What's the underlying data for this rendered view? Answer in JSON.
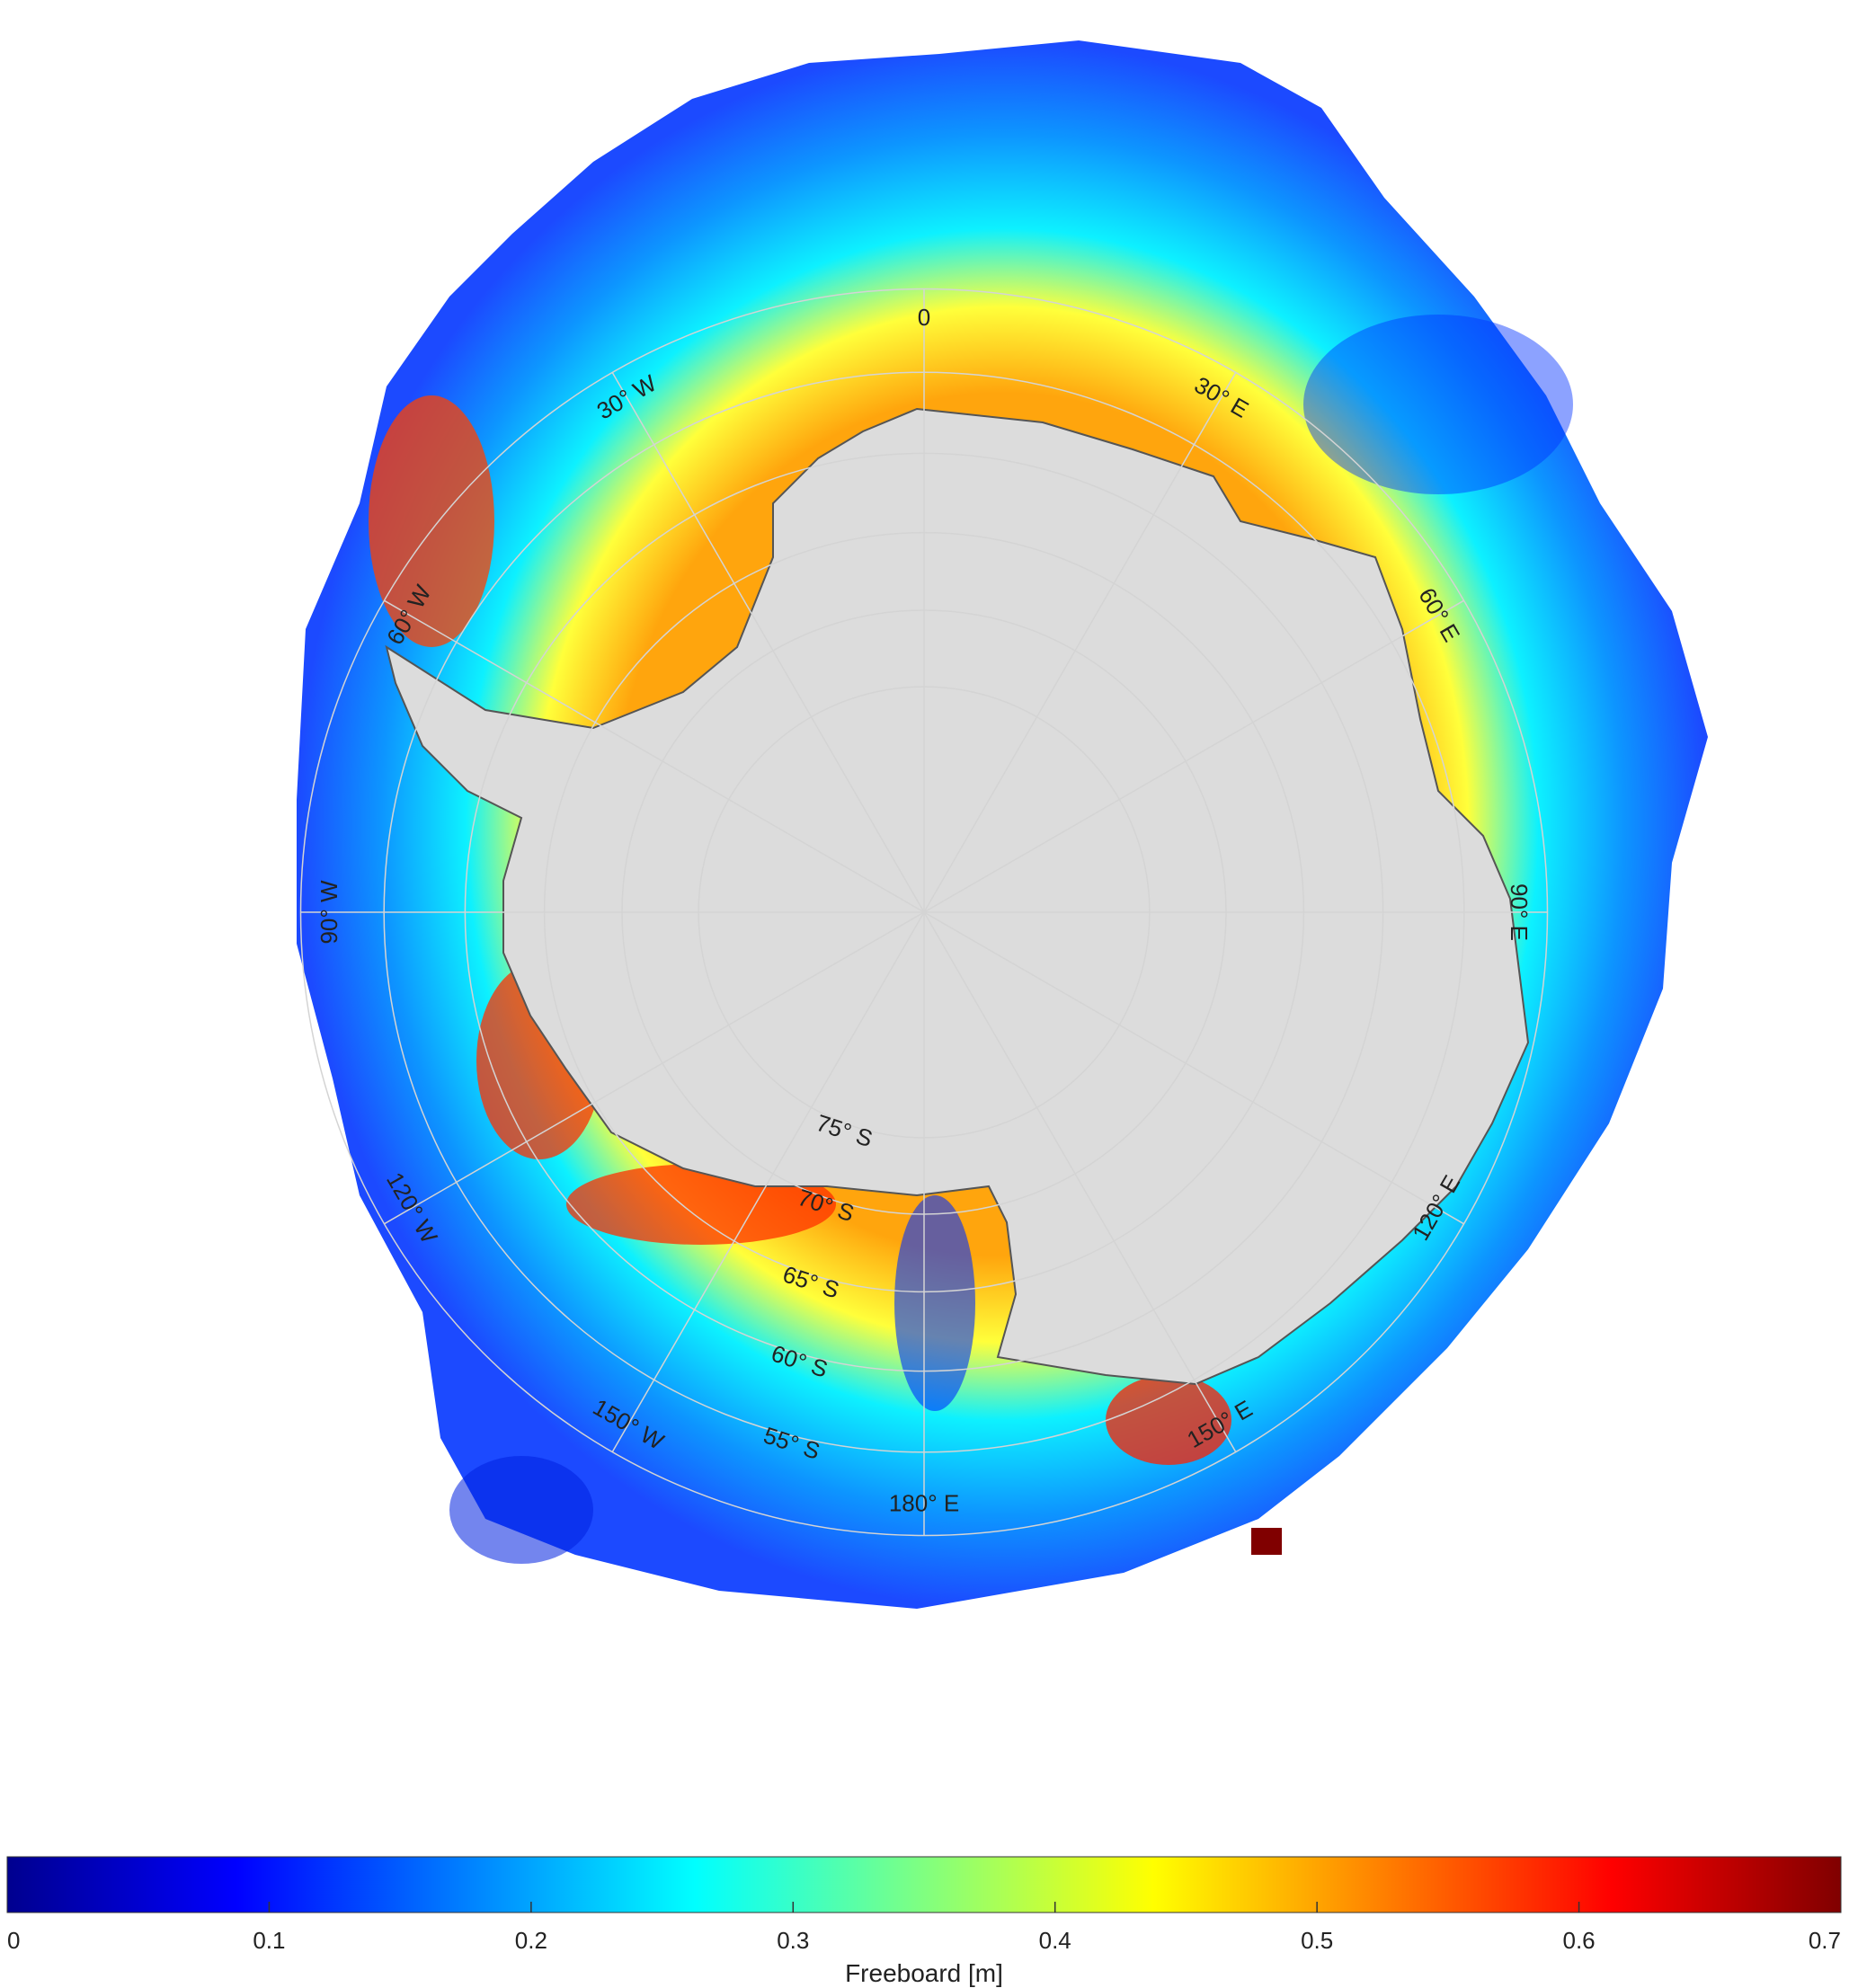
{
  "map": {
    "projection": "south polar stereographic",
    "continent_color": "#dcdcdc",
    "coast_color": "#555555",
    "grid_color": "#d4d4d4",
    "meridian_labels": [
      {
        "id": "lon-0",
        "text": "0",
        "lon": 0
      },
      {
        "id": "lon-30e",
        "text": "30° E",
        "lon": 30
      },
      {
        "id": "lon-60e",
        "text": "60° E",
        "lon": 60
      },
      {
        "id": "lon-90e",
        "text": "90° E",
        "lon": 90
      },
      {
        "id": "lon-120e",
        "text": "120° E",
        "lon": 120
      },
      {
        "id": "lon-150e",
        "text": "150° E",
        "lon": 150
      },
      {
        "id": "lon-180e",
        "text": "180° E",
        "lon": 180
      },
      {
        "id": "lon-150w",
        "text": "150° W",
        "lon": -150
      },
      {
        "id": "lon-120w",
        "text": "120° W",
        "lon": -120
      },
      {
        "id": "lon-90w",
        "text": "90° W",
        "lon": -90
      },
      {
        "id": "lon-60w",
        "text": "60° W",
        "lon": -60
      },
      {
        "id": "lon-30w",
        "text": "30° W",
        "lon": -30
      }
    ],
    "parallel_labels": [
      {
        "id": "lat-75s",
        "text": "75° S",
        "lat": 75
      },
      {
        "id": "lat-70s",
        "text": "70° S",
        "lat": 70
      },
      {
        "id": "lat-65s",
        "text": "65° S",
        "lat": 65
      },
      {
        "id": "lat-60s",
        "text": "60° S",
        "lat": 60
      },
      {
        "id": "lat-55s",
        "text": "55° S",
        "lat": 55
      }
    ]
  },
  "colorbar": {
    "title": "Freeboard [m]",
    "min": 0,
    "max": 0.7,
    "tick_labels": [
      "0",
      "0.1",
      "0.2",
      "0.3",
      "0.4",
      "0.5",
      "0.6",
      "0.7"
    ],
    "colormap": "jet",
    "stops": [
      "#00008f",
      "#0000ff",
      "#0080ff",
      "#00ffff",
      "#80ff80",
      "#ffff00",
      "#ff8000",
      "#ff0000",
      "#800000"
    ]
  }
}
